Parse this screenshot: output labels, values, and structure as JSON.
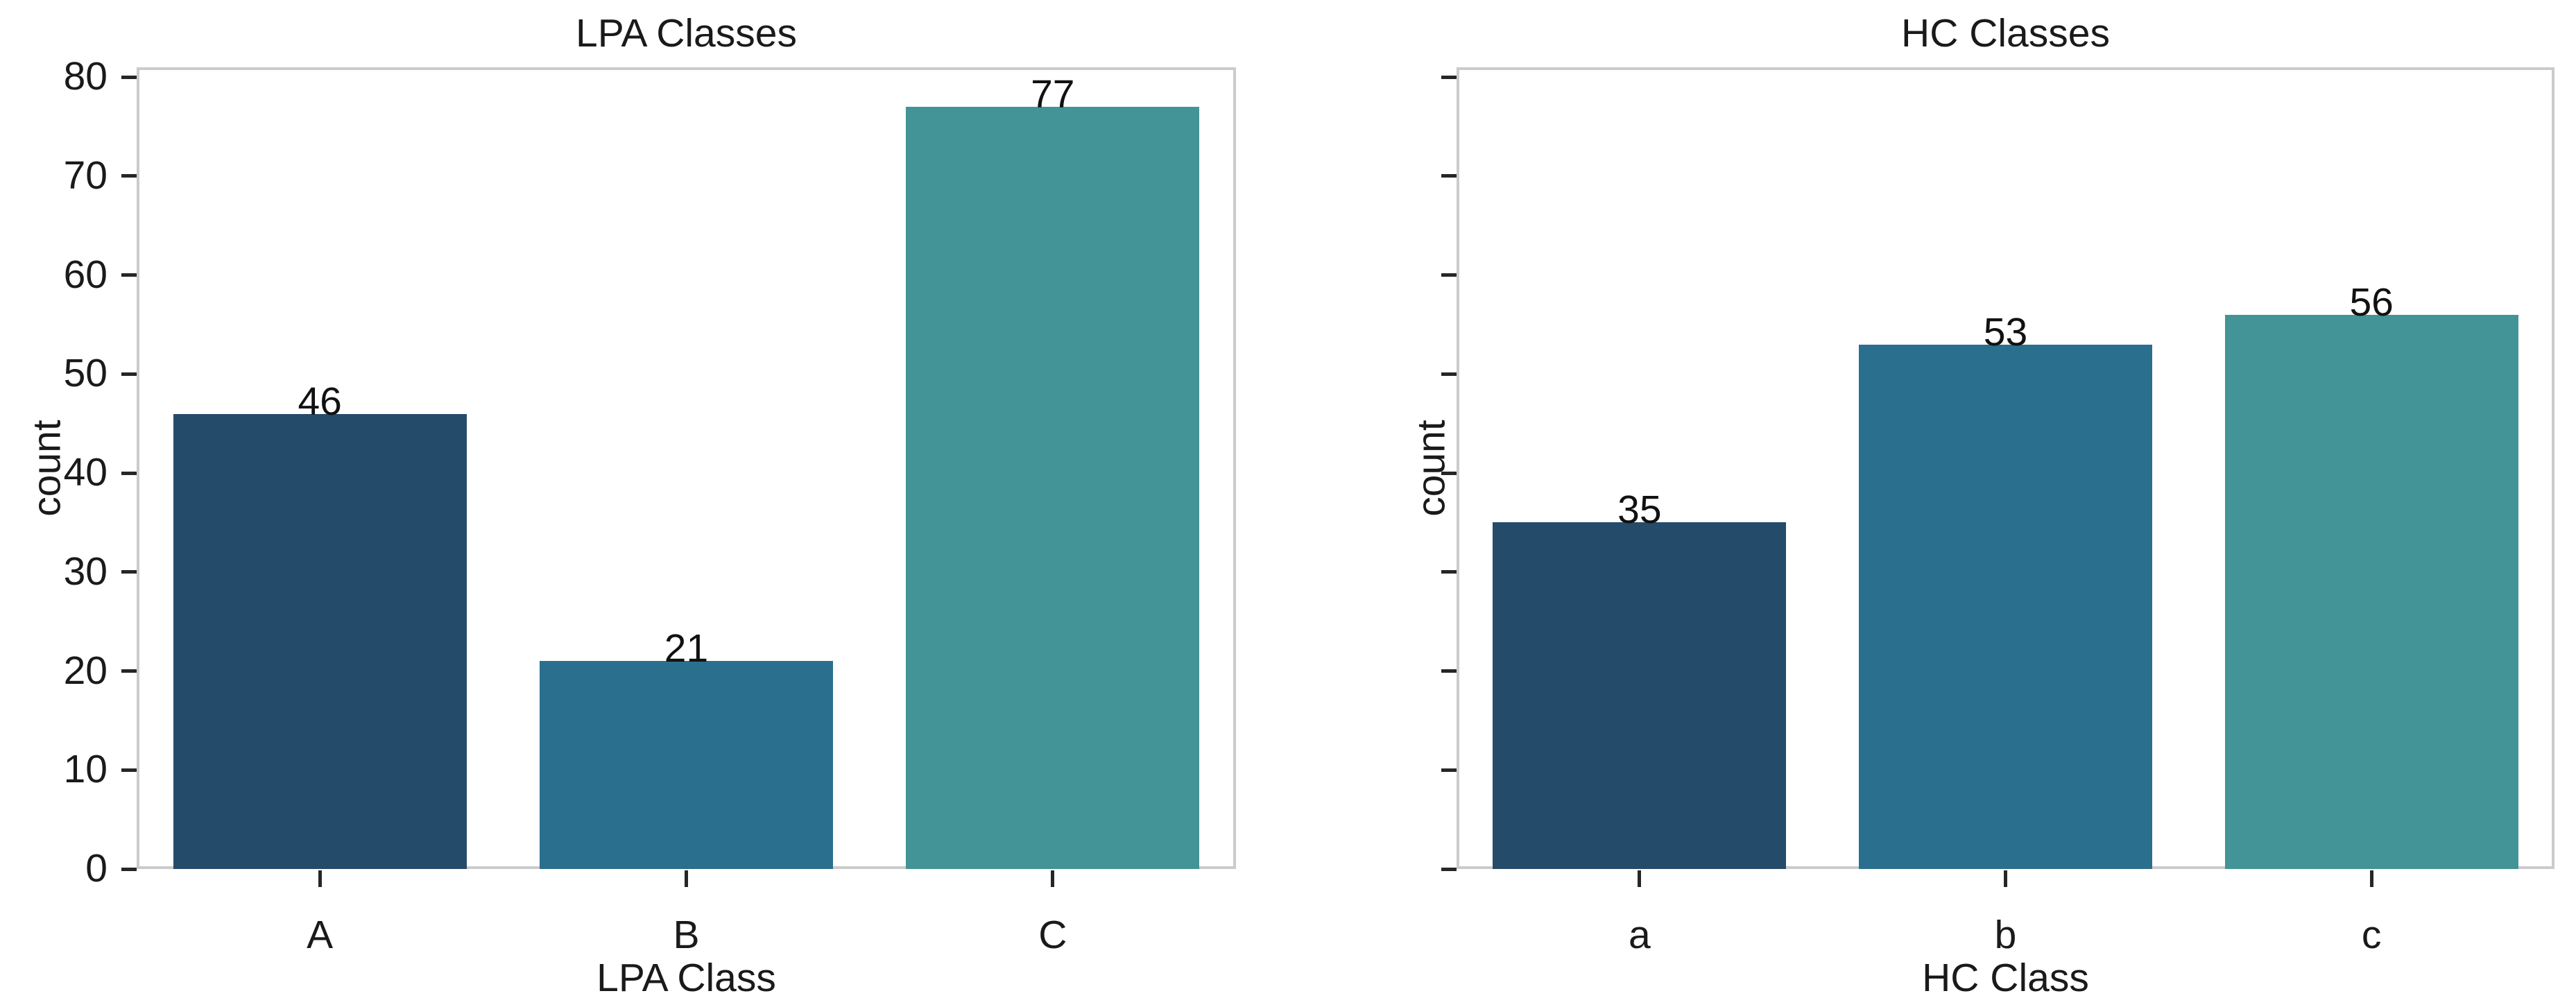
{
  "figure": {
    "background": "#ffffff"
  },
  "style": {
    "axis_border_color": "#cbcbcb",
    "tick_color": "#262626",
    "text_color": "#1a1a1a",
    "bar_palette": [
      "#254b6b",
      "#2a6f8e",
      "#429496"
    ]
  },
  "chart_data": [
    {
      "type": "bar",
      "title": "LPA Classes",
      "xlabel": "LPA Class",
      "ylabel": "count",
      "categories": [
        "A",
        "B",
        "C"
      ],
      "values": [
        46,
        21,
        77
      ],
      "bar_labels": [
        "46",
        "21",
        "77"
      ],
      "bar_colors": [
        "#254b6b",
        "#2a6f8e",
        "#429496"
      ],
      "ylim": [
        0,
        80
      ],
      "yticks": [
        0,
        10,
        20,
        30,
        40,
        50,
        60,
        70,
        80
      ],
      "ytick_labels": [
        "0",
        "10",
        "20",
        "30",
        "40",
        "50",
        "60",
        "70",
        "80"
      ],
      "show_ytick_labels": true,
      "grid": false,
      "legend": "none"
    },
    {
      "type": "bar",
      "title": "HC Classes",
      "xlabel": "HC Class",
      "ylabel": "count",
      "categories": [
        "a",
        "b",
        "c"
      ],
      "values": [
        35,
        53,
        56
      ],
      "bar_labels": [
        "35",
        "53",
        "56"
      ],
      "bar_colors": [
        "#254b6b",
        "#2a6f8e",
        "#429496"
      ],
      "ylim": [
        0,
        80
      ],
      "yticks": [
        0,
        10,
        20,
        30,
        40,
        50,
        60,
        70,
        80
      ],
      "ytick_labels": [],
      "show_ytick_labels": false,
      "grid": false,
      "legend": "none"
    }
  ]
}
